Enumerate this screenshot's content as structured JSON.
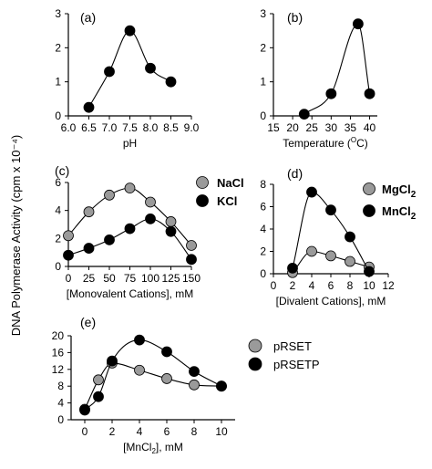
{
  "figure": {
    "shared_ylabel": "DNA Polymerase Activity (cpm x 10⁻⁴)"
  },
  "colors": {
    "series_black": "#000000",
    "series_gray": "#9a9a9a",
    "stroke": "#000000"
  },
  "chart_data": [
    {
      "panel": "(a)",
      "type": "line",
      "xlabel": "pH",
      "xlim": [
        6.0,
        9.0
      ],
      "ylim": [
        0,
        3
      ],
      "xticks": [
        6.0,
        6.5,
        7.0,
        7.5,
        8.0,
        8.5,
        9.0
      ],
      "xtick_labels": [
        "6.0",
        "6.5",
        "7.0",
        "7.5",
        "8.0",
        "8.5",
        "9.0"
      ],
      "yticks": [
        0,
        1,
        2,
        3
      ],
      "ytick_labels": [
        "0",
        "1",
        "2",
        "3"
      ],
      "series": [
        {
          "color": "black",
          "x": [
            6.5,
            7.0,
            7.5,
            8.0,
            8.5
          ],
          "y": [
            0.25,
            1.3,
            2.5,
            1.4,
            1.0
          ]
        }
      ]
    },
    {
      "panel": "(b)",
      "type": "line",
      "xlabel": "Temperature (°C)",
      "xlabel_main": "Temperature (",
      "xlabel_sup": "O",
      "xlabel_end": "C)",
      "xlim": [
        15,
        42
      ],
      "ylim": [
        0,
        3
      ],
      "xticks": [
        15,
        20,
        25,
        30,
        35,
        40
      ],
      "xtick_labels": [
        "15",
        "20",
        "25",
        "30",
        "35",
        "40"
      ],
      "yticks": [
        0,
        1,
        2,
        3
      ],
      "ytick_labels": [
        "0",
        "1",
        "2",
        "3"
      ],
      "series": [
        {
          "color": "black",
          "x": [
            23,
            30,
            37,
            40
          ],
          "y": [
            0.05,
            0.65,
            2.7,
            0.65
          ]
        }
      ]
    },
    {
      "panel": "(c)",
      "type": "line",
      "xlabel": "[Monovalent Cations], mM",
      "xlim": [
        0,
        150
      ],
      "ylim": [
        0,
        6
      ],
      "xticks": [
        0,
        25,
        50,
        75,
        100,
        125,
        150
      ],
      "xtick_labels": [
        "0",
        "25",
        "50",
        "75",
        "100",
        "125",
        "150"
      ],
      "yticks": [
        0,
        2,
        4,
        6
      ],
      "ytick_labels": [
        "0",
        "2",
        "4",
        "6"
      ],
      "series": [
        {
          "name": "NaCl",
          "color": "gray",
          "x": [
            0,
            25,
            50,
            75,
            100,
            125,
            150
          ],
          "y": [
            2.2,
            3.9,
            5.1,
            5.6,
            4.6,
            3.2,
            1.5
          ]
        },
        {
          "name": "KCl",
          "color": "black",
          "x": [
            0,
            25,
            50,
            75,
            100,
            125,
            150
          ],
          "y": [
            0.8,
            1.3,
            1.9,
            2.7,
            3.4,
            2.5,
            0.5
          ]
        }
      ]
    },
    {
      "panel": "(d)",
      "type": "line",
      "xlabel": "[Divalent Cations], mM",
      "xlim": [
        0,
        12
      ],
      "ylim": [
        0,
        8
      ],
      "xticks": [
        0,
        2,
        4,
        6,
        8,
        10,
        12
      ],
      "xtick_labels": [
        "0",
        "2",
        "4",
        "6",
        "8",
        "10",
        "12"
      ],
      "yticks": [
        0,
        2,
        4,
        6,
        8
      ],
      "ytick_labels": [
        "0",
        "2",
        "4",
        "6",
        "8"
      ],
      "series": [
        {
          "name": "MgCl2",
          "name_main": "MgCl",
          "name_sub": "2",
          "color": "gray",
          "x": [
            2,
            4,
            6,
            8,
            10
          ],
          "y": [
            0.1,
            2.0,
            1.6,
            1.1,
            0.6
          ]
        },
        {
          "name": "MnCl2",
          "name_main": "MnCl",
          "name_sub": "2",
          "color": "black",
          "x": [
            2,
            4,
            6,
            8,
            10
          ],
          "y": [
            0.5,
            7.3,
            5.7,
            3.3,
            0.2
          ]
        }
      ]
    },
    {
      "panel": "(e)",
      "type": "line",
      "xlabel": "[MnCl2], mM",
      "xlabel_main": "[MnCl",
      "xlabel_sub": "2",
      "xlabel_end": "], mM",
      "xlim": [
        -1,
        11
      ],
      "ylim": [
        0,
        20
      ],
      "xticks": [
        0,
        2,
        4,
        6,
        8,
        10
      ],
      "xtick_labels": [
        "0",
        "2",
        "4",
        "6",
        "8",
        "10"
      ],
      "yticks": [
        0,
        4,
        8,
        12,
        16,
        20
      ],
      "ytick_labels": [
        "0",
        "4",
        "8",
        "12",
        "16",
        "20"
      ],
      "series": [
        {
          "name": "pRSET",
          "color": "gray",
          "x": [
            0,
            1,
            2,
            4,
            6,
            8,
            10
          ],
          "y": [
            2.5,
            9.5,
            13.5,
            11.8,
            9.8,
            8.3,
            8.0
          ]
        },
        {
          "name": "pRSETP",
          "color": "black",
          "x": [
            0,
            1,
            2,
            4,
            6,
            8,
            10
          ],
          "y": [
            2.3,
            5.5,
            14.0,
            19.0,
            16.2,
            11.5,
            8.0
          ]
        }
      ]
    }
  ]
}
